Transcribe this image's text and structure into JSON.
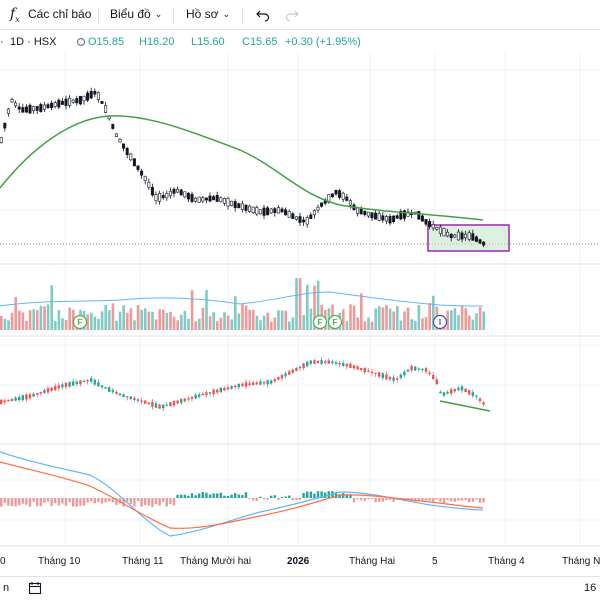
{
  "toolbar": {
    "indicators_label": "Các chỉ báo",
    "chart_label": "Biểu đồ",
    "templates_label": "Hồ sơ"
  },
  "legend": {
    "symbol": "1D · HSX",
    "symbol_prefix": "·",
    "open": "O15.85",
    "high": "H16.20",
    "low": "L15.60",
    "close": "C15.65",
    "change": "+0.30 (+1.95%)"
  },
  "x_axis": {
    "labels": [
      "0",
      "Tháng 10",
      "Tháng 11",
      "Tháng Mười hai",
      "2026",
      "Tháng Hai",
      "5",
      "Tháng 4",
      "Tháng Nă"
    ]
  },
  "markers": {
    "f1": "F",
    "f2": "F",
    "f3": "F",
    "i1": "I"
  },
  "bottom": {
    "left_text": "n",
    "right_text": "16"
  },
  "colors": {
    "up": "#26a69a",
    "down": "#ef5350",
    "ma": "#43a047",
    "text": "#131722",
    "box_border": "#9c27b0",
    "box_fill": "#c8e6c9",
    "macd_blue": "#64b5f6",
    "macd_orange": "#ff7043"
  },
  "chart_data": {
    "type": "candlestick",
    "symbol": "HSX 1D",
    "last_bar": {
      "open": 15.85,
      "high": 16.2,
      "low": 15.6,
      "close": 15.65,
      "change": 0.3,
      "change_pct": 1.95
    }
  }
}
